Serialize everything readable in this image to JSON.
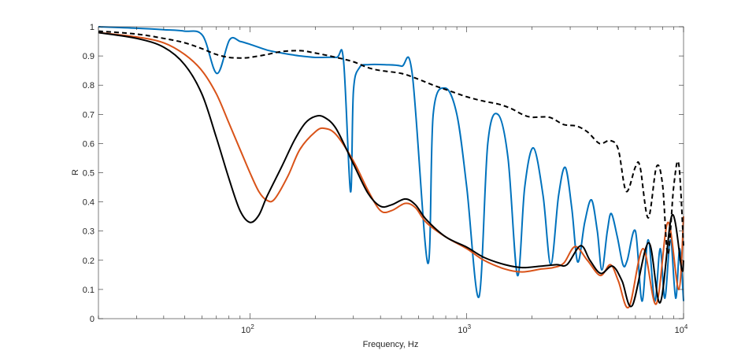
{
  "chart_data": {
    "type": "line",
    "title": "",
    "xlabel": "Frequency, Hz",
    "ylabel": "R",
    "xscale": "log",
    "xlim": [
      20,
      10000
    ],
    "ylim": [
      0,
      1
    ],
    "grid": false,
    "legend": "none",
    "yticks": [
      "0",
      "0.1",
      "0.2",
      "0.3",
      "0.4",
      "0.5",
      "0.6",
      "0.7",
      "0.8",
      "0.9",
      "1"
    ],
    "xticks": [
      {
        "base": "10",
        "exp": "2",
        "value": 100
      },
      {
        "base": "10",
        "exp": "3",
        "value": 1000
      },
      {
        "base": "10",
        "exp": "4",
        "value": 10000
      }
    ],
    "series": [
      {
        "name": "blue",
        "color": "#0072BD",
        "dash": false,
        "x": [
          20,
          30,
          40,
          50,
          60.5,
          70.4,
          80.5,
          90,
          100,
          120,
          140,
          170,
          200,
          250,
          270,
          291,
          300,
          320,
          350,
          420,
          500,
          560,
          661,
          700,
          794,
          900,
          1000,
          1138,
          1250,
          1391,
          1550,
          1714,
          1850,
          2030,
          2250,
          2441,
          2650,
          2847,
          3050,
          3250,
          3500,
          3760,
          4000,
          4200,
          4450,
          4640,
          4950,
          5260,
          5500,
          6000,
          6430,
          6870,
          7370,
          7800,
          8200,
          8700,
          9200,
          9600,
          10000
        ],
        "y": [
          1.0,
          0.995,
          0.99,
          0.985,
          0.97,
          0.84,
          0.955,
          0.95,
          0.94,
          0.92,
          0.91,
          0.9,
          0.895,
          0.895,
          0.885,
          0.435,
          0.78,
          0.86,
          0.87,
          0.87,
          0.865,
          0.84,
          0.19,
          0.7,
          0.79,
          0.7,
          0.45,
          0.074,
          0.6,
          0.7,
          0.55,
          0.148,
          0.45,
          0.585,
          0.42,
          0.186,
          0.42,
          0.518,
          0.38,
          0.194,
          0.33,
          0.407,
          0.3,
          0.167,
          0.3,
          0.36,
          0.28,
          0.184,
          0.2,
          0.3,
          0.06,
          0.27,
          0.06,
          0.24,
          0.07,
          0.27,
          0.07,
          0.24,
          0.06
        ]
      },
      {
        "name": "orange",
        "color": "#D95319",
        "dash": false,
        "x": [
          20,
          30,
          40,
          50,
          60,
          70,
          80,
          90,
          100,
          110,
          120,
          130,
          150,
          170,
          200,
          220,
          250,
          300,
          350,
          400,
          450,
          520,
          580,
          650,
          800,
          1000,
          1200,
          1500,
          1800,
          2200,
          2500,
          2800,
          3160,
          3600,
          4130,
          4600,
          5000,
          5600,
          6500,
          7480,
          8470,
          9500,
          10000
        ],
        "y": [
          0.98,
          0.965,
          0.945,
          0.905,
          0.85,
          0.77,
          0.67,
          0.58,
          0.5,
          0.435,
          0.405,
          0.41,
          0.49,
          0.58,
          0.64,
          0.652,
          0.63,
          0.54,
          0.44,
          0.37,
          0.37,
          0.395,
          0.38,
          0.33,
          0.28,
          0.24,
          0.2,
          0.17,
          0.16,
          0.17,
          0.175,
          0.19,
          0.247,
          0.2,
          0.148,
          0.185,
          0.13,
          0.04,
          0.24,
          0.05,
          0.33,
          0.1,
          0.35
        ]
      },
      {
        "name": "black",
        "color": "#000000",
        "dash": false,
        "x": [
          20,
          30,
          40,
          50,
          60,
          70,
          80,
          90,
          100,
          110,
          120,
          140,
          160,
          180,
          200,
          220,
          250,
          300,
          350,
          400,
          450,
          520,
          580,
          650,
          800,
          1000,
          1200,
          1500,
          1800,
          2200,
          2600,
          2900,
          3350,
          3700,
          4150,
          4700,
          5200,
          5800,
          6900,
          7800,
          8850,
          9800,
          10000
        ],
        "y": [
          0.98,
          0.96,
          0.93,
          0.87,
          0.77,
          0.62,
          0.48,
          0.37,
          0.33,
          0.355,
          0.42,
          0.52,
          0.61,
          0.67,
          0.693,
          0.69,
          0.65,
          0.53,
          0.43,
          0.385,
          0.39,
          0.41,
          0.39,
          0.34,
          0.28,
          0.245,
          0.21,
          0.185,
          0.175,
          0.18,
          0.185,
          0.185,
          0.25,
          0.2,
          0.155,
          0.18,
          0.13,
          0.045,
          0.26,
          0.055,
          0.355,
          0.17,
          0.2
        ]
      },
      {
        "name": "dashed",
        "color": "#000000",
        "dash": true,
        "x": [
          20,
          30,
          40,
          50,
          60,
          70,
          80,
          90,
          100,
          120,
          140,
          170,
          200,
          250,
          300,
          350,
          400,
          500,
          600,
          700,
          800,
          1000,
          1200,
          1400,
          1600,
          1800,
          2000,
          2400,
          2800,
          3200,
          3600,
          4000,
          4200,
          4600,
          5000,
          5440,
          6000,
          6300,
          6870,
          7500,
          8000,
          8470,
          9000,
          9500,
          10000
        ],
        "y": [
          0.985,
          0.975,
          0.96,
          0.945,
          0.925,
          0.905,
          0.895,
          0.893,
          0.895,
          0.905,
          0.915,
          0.918,
          0.91,
          0.895,
          0.88,
          0.86,
          0.85,
          0.84,
          0.82,
          0.8,
          0.785,
          0.76,
          0.745,
          0.735,
          0.72,
          0.7,
          0.69,
          0.69,
          0.665,
          0.66,
          0.64,
          0.605,
          0.6,
          0.61,
          0.58,
          0.436,
          0.52,
          0.52,
          0.345,
          0.52,
          0.46,
          0.22,
          0.45,
          0.53,
          0.25
        ]
      }
    ]
  }
}
